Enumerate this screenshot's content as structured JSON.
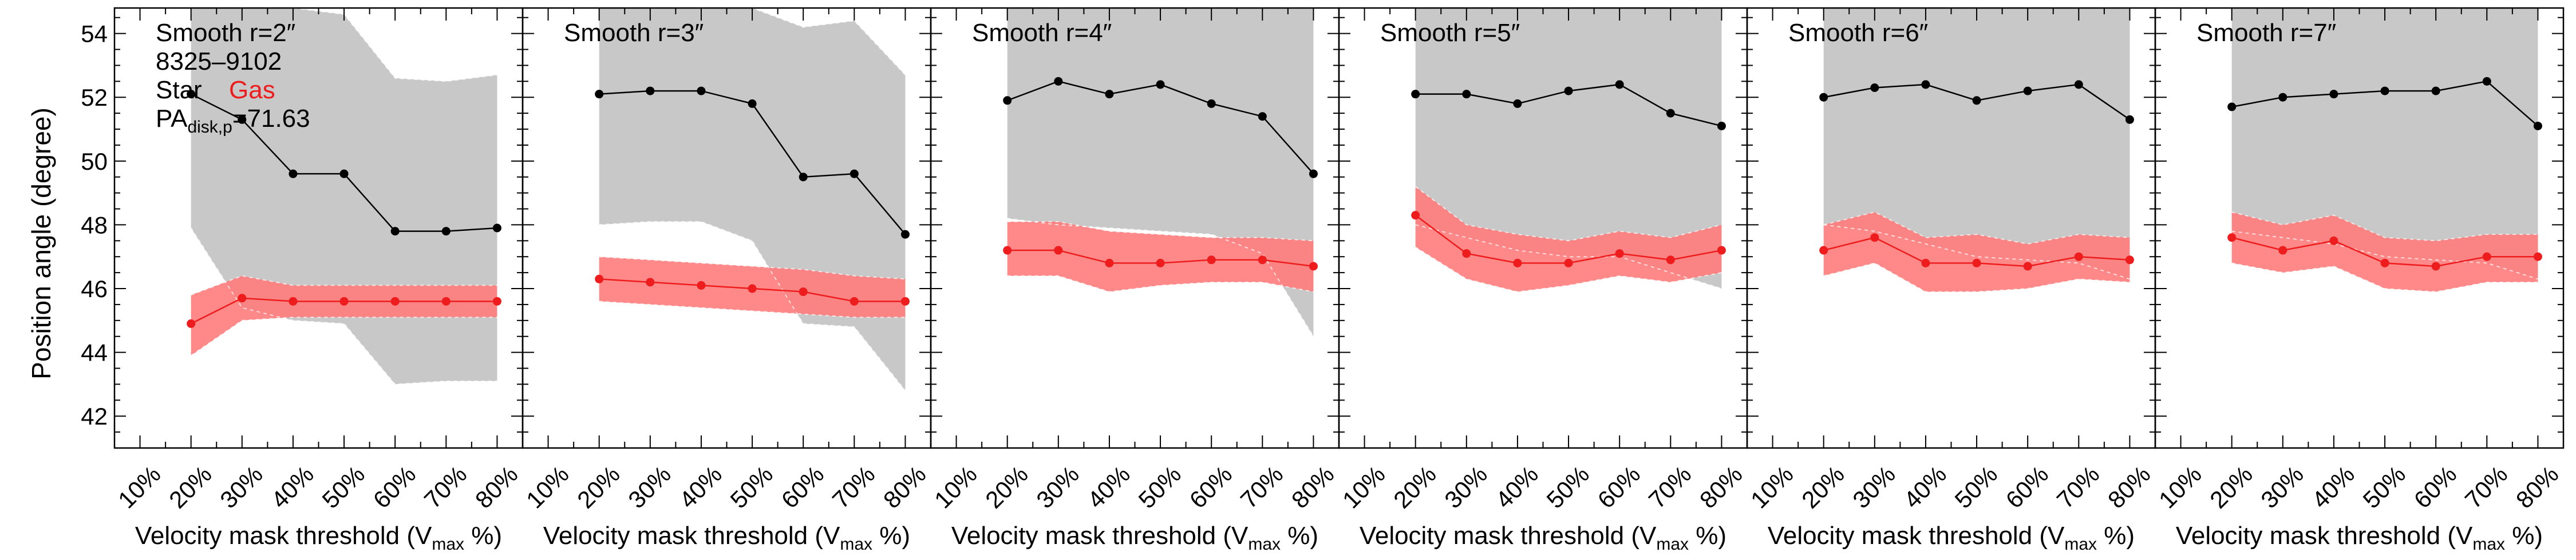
{
  "figure": {
    "ylabel": "Position angle (degree)",
    "xlabel_main": "Velocity mask threshold (V",
    "xlabel_sub": "max",
    "xlabel_tail": " %)",
    "galaxy_id": "8325–9102",
    "legend_star": "Star",
    "legend_gas": "Gas",
    "pa_prefix": "PA",
    "pa_sub": "disk,p",
    "pa_value": "=71.63",
    "x_tick_labels": [
      "10%",
      "20%",
      "30%",
      "40%",
      "50%",
      "60%",
      "70%",
      "80%"
    ],
    "y_tick_labels": [
      "42",
      "44",
      "46",
      "48",
      "50",
      "52",
      "54"
    ],
    "colors": {
      "star": "#000000",
      "star_band": "#c8c8c8",
      "gas": "#ee1c1c",
      "gas_band": "#ff7b7b"
    }
  },
  "chart_data": [
    {
      "type": "line",
      "title": "Smooth r=2″",
      "x": [
        20,
        30,
        40,
        50,
        60,
        70,
        80
      ],
      "xlim": [
        5,
        85
      ],
      "ylim": [
        41,
        54.8
      ],
      "series": [
        {
          "name": "Star",
          "values": [
            52.1,
            51.3,
            49.6,
            49.6,
            47.8,
            47.8,
            47.9
          ],
          "band_lower": [
            47.9,
            45.4,
            45.0,
            44.9,
            43.0,
            43.1,
            43.1
          ],
          "band_upper": [
            54.8,
            54.8,
            54.8,
            54.6,
            52.6,
            52.5,
            52.7
          ]
        },
        {
          "name": "Gas",
          "values": [
            44.9,
            45.7,
            45.6,
            45.6,
            45.6,
            45.6,
            45.6
          ],
          "band_lower": [
            43.9,
            45.0,
            45.1,
            45.1,
            45.1,
            45.1,
            45.1
          ],
          "band_upper": [
            45.8,
            46.4,
            46.1,
            46.1,
            46.1,
            46.1,
            46.1
          ]
        }
      ]
    },
    {
      "type": "line",
      "title": "Smooth r=3″",
      "x": [
        20,
        30,
        40,
        50,
        60,
        70,
        80
      ],
      "xlim": [
        5,
        85
      ],
      "ylim": [
        41,
        54.8
      ],
      "series": [
        {
          "name": "Star",
          "values": [
            52.1,
            52.2,
            52.2,
            51.8,
            49.5,
            49.6,
            47.7
          ],
          "band_lower": [
            48.0,
            48.1,
            48.1,
            47.5,
            44.9,
            44.8,
            42.8
          ],
          "band_upper": [
            54.8,
            54.8,
            54.8,
            54.8,
            54.2,
            54.4,
            52.7
          ]
        },
        {
          "name": "Gas",
          "values": [
            46.3,
            46.2,
            46.1,
            46.0,
            45.9,
            45.6,
            45.6
          ],
          "band_lower": [
            45.6,
            45.5,
            45.4,
            45.3,
            45.2,
            45.1,
            45.1
          ],
          "band_upper": [
            47.0,
            46.9,
            46.8,
            46.7,
            46.6,
            46.4,
            46.3
          ]
        }
      ]
    },
    {
      "type": "line",
      "title": "Smooth r=4″",
      "x": [
        20,
        30,
        40,
        50,
        60,
        70,
        80
      ],
      "xlim": [
        5,
        85
      ],
      "ylim": [
        41,
        54.8
      ],
      "series": [
        {
          "name": "Star",
          "values": [
            51.9,
            52.5,
            52.1,
            52.4,
            51.8,
            51.4,
            49.6
          ],
          "band_lower": [
            48.2,
            48.0,
            47.9,
            47.8,
            47.7,
            47.1,
            44.5
          ],
          "band_upper": [
            54.8,
            54.8,
            54.8,
            54.8,
            54.8,
            54.8,
            54.8
          ]
        },
        {
          "name": "Gas",
          "values": [
            47.2,
            47.2,
            46.8,
            46.8,
            46.9,
            46.9,
            46.7
          ],
          "band_lower": [
            46.4,
            46.4,
            45.9,
            46.1,
            46.2,
            46.2,
            45.9
          ],
          "band_upper": [
            48.1,
            48.1,
            47.8,
            47.7,
            47.6,
            47.6,
            47.5
          ]
        }
      ]
    },
    {
      "type": "line",
      "title": "Smooth r=5″",
      "x": [
        20,
        30,
        40,
        50,
        60,
        70,
        80
      ],
      "xlim": [
        5,
        85
      ],
      "ylim": [
        41,
        54.8
      ],
      "series": [
        {
          "name": "Star",
          "values": [
            52.1,
            52.1,
            51.8,
            52.2,
            52.4,
            51.5,
            51.1
          ],
          "band_lower": [
            48.0,
            47.6,
            47.2,
            47.0,
            47.0,
            46.5,
            46.0
          ],
          "band_upper": [
            54.8,
            54.8,
            54.8,
            54.8,
            54.8,
            54.8,
            54.8
          ]
        },
        {
          "name": "Gas",
          "values": [
            48.3,
            47.1,
            46.8,
            46.8,
            47.1,
            46.9,
            47.2
          ],
          "band_lower": [
            47.3,
            46.3,
            45.9,
            46.1,
            46.4,
            46.2,
            46.5
          ],
          "band_upper": [
            49.2,
            48.0,
            47.7,
            47.5,
            47.8,
            47.6,
            48.0
          ]
        }
      ]
    },
    {
      "type": "line",
      "title": "Smooth r=6″",
      "x": [
        20,
        30,
        40,
        50,
        60,
        70,
        80
      ],
      "xlim": [
        5,
        85
      ],
      "ylim": [
        41,
        54.8
      ],
      "series": [
        {
          "name": "Star",
          "values": [
            52.0,
            52.3,
            52.4,
            51.9,
            52.2,
            52.4,
            51.3
          ],
          "band_lower": [
            48.0,
            47.8,
            47.4,
            47.0,
            46.9,
            46.8,
            46.3
          ],
          "band_upper": [
            54.8,
            54.8,
            54.8,
            54.8,
            54.8,
            54.8,
            54.8
          ]
        },
        {
          "name": "Gas",
          "values": [
            47.2,
            47.6,
            46.8,
            46.8,
            46.7,
            47.0,
            46.9
          ],
          "band_lower": [
            46.4,
            46.8,
            45.9,
            45.9,
            46.0,
            46.3,
            46.2
          ],
          "band_upper": [
            48.0,
            48.4,
            47.6,
            47.7,
            47.4,
            47.7,
            47.6
          ]
        }
      ]
    },
    {
      "type": "line",
      "title": "Smooth r=7″",
      "x": [
        20,
        30,
        40,
        50,
        60,
        70,
        80
      ],
      "xlim": [
        5,
        85
      ],
      "ylim": [
        41,
        54.8
      ],
      "series": [
        {
          "name": "Star",
          "values": [
            51.7,
            52.0,
            52.1,
            52.2,
            52.2,
            52.5,
            51.1
          ],
          "band_lower": [
            47.8,
            47.6,
            47.4,
            47.0,
            46.9,
            46.8,
            46.3
          ],
          "band_upper": [
            54.8,
            54.8,
            54.8,
            54.8,
            54.8,
            54.8,
            54.8
          ]
        },
        {
          "name": "Gas",
          "values": [
            47.6,
            47.2,
            47.5,
            46.8,
            46.7,
            47.0,
            47.0
          ],
          "band_lower": [
            46.8,
            46.5,
            46.7,
            46.0,
            45.9,
            46.2,
            46.2
          ],
          "band_upper": [
            48.4,
            48.0,
            48.3,
            47.6,
            47.5,
            47.7,
            47.7
          ]
        }
      ]
    }
  ]
}
